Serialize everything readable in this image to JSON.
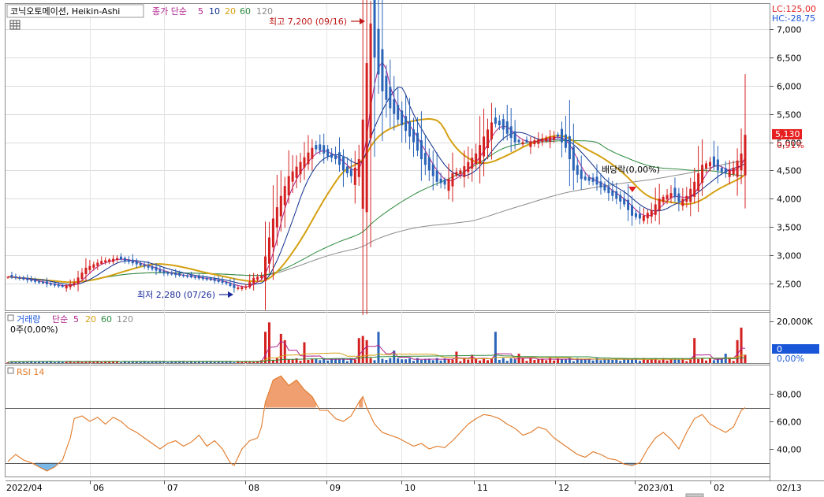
{
  "header": {
    "stock_name": "코닉오토메이션, Heikin-Ashi",
    "ma_legend_prefix": "종가 단순",
    "ma_periods": [
      "5",
      "10",
      "20",
      "60",
      "120"
    ],
    "ma_colors": [
      "#b0208c",
      "#0a2a8a",
      "#d4a010",
      "#2e8b3e",
      "#8c8c8c"
    ],
    "lc_label": "LC:125,00",
    "hc_label": "HC:-28,75",
    "current_price": "5,130",
    "current_change": "0,91%"
  },
  "annotations": {
    "high_label": "최고 7,200 (09/16)",
    "low_label": "최저 2,280 (07/26)",
    "dividend_label": "배당락(0,00%)"
  },
  "volume_panel": {
    "legend_name": "거래량",
    "legend_prefix": "단순",
    "legend_periods": [
      "5",
      "20",
      "60",
      "120"
    ],
    "info": "0주(0,00%)",
    "axis_top": "20,000K",
    "value_box": "0",
    "pct_label": "0,00%"
  },
  "rsi_panel": {
    "legend": "RSI 14",
    "ticks": [
      "80,00",
      "60,00",
      "40,00"
    ]
  },
  "colors": {
    "up": "#d42020",
    "down": "#2a64b8",
    "rsi_line": "#e07a2a",
    "rsi_fill_high": "#f0a070",
    "rsi_fill_low": "#7ab8e8",
    "price_box": "#e62020",
    "volume_box": "#1a56d8"
  },
  "chart_data": {
    "type": "candlestick",
    "x_labels": [
      "2022/04",
      "06",
      "07",
      "08",
      "09",
      "10",
      "11",
      "12",
      "2023/01",
      "02",
      "02/13"
    ],
    "y_ticks": [
      "7,000",
      "6,500",
      "6,000",
      "5,500",
      "5,000",
      "4,500",
      "4,000",
      "3,500",
      "3,000",
      "2,500"
    ],
    "ylim": [
      2000,
      7400
    ],
    "price_anchors": [
      [
        0,
        2620
      ],
      [
        5,
        2560
      ],
      [
        10,
        2490
      ],
      [
        14,
        2440
      ],
      [
        17,
        2520
      ],
      [
        20,
        2780
      ],
      [
        24,
        2900
      ],
      [
        28,
        2950
      ],
      [
        32,
        2860
      ],
      [
        36,
        2780
      ],
      [
        40,
        2680
      ],
      [
        44,
        2640
      ],
      [
        48,
        2600
      ],
      [
        52,
        2560
      ],
      [
        56,
        2500
      ],
      [
        58,
        2420
      ],
      [
        61,
        2450
      ],
      [
        63,
        2600
      ],
      [
        65,
        2640
      ],
      [
        66,
        2980
      ],
      [
        68,
        3650
      ],
      [
        70,
        4050
      ],
      [
        72,
        4400
      ],
      [
        75,
        4650
      ],
      [
        78,
        4900
      ],
      [
        80,
        4850
      ],
      [
        82,
        4750
      ],
      [
        84,
        4700
      ],
      [
        86,
        4500
      ],
      [
        88,
        4400
      ],
      [
        90,
        4700
      ],
      [
        91,
        5400
      ],
      [
        92,
        6400
      ],
      [
        93,
        7100
      ],
      [
        94,
        6500
      ],
      [
        96,
        5900
      ],
      [
        98,
        5600
      ],
      [
        100,
        5400
      ],
      [
        102,
        5200
      ],
      [
        104,
        5000
      ],
      [
        106,
        4700
      ],
      [
        108,
        4500
      ],
      [
        110,
        4300
      ],
      [
        112,
        4250
      ],
      [
        114,
        4450
      ],
      [
        116,
        4500
      ],
      [
        118,
        4650
      ],
      [
        120,
        4800
      ],
      [
        122,
        5100
      ],
      [
        124,
        5350
      ],
      [
        126,
        5300
      ],
      [
        128,
        5150
      ],
      [
        130,
        5000
      ],
      [
        133,
        5000
      ],
      [
        136,
        5050
      ],
      [
        139,
        5100
      ],
      [
        141,
        5100
      ],
      [
        143,
        4900
      ],
      [
        145,
        4500
      ],
      [
        147,
        4350
      ],
      [
        150,
        4300
      ],
      [
        153,
        4150
      ],
      [
        156,
        4000
      ],
      [
        158,
        3900
      ],
      [
        160,
        3700
      ],
      [
        162,
        3650
      ],
      [
        163,
        3700
      ],
      [
        165,
        3800
      ],
      [
        167,
        4000
      ],
      [
        170,
        4100
      ],
      [
        172,
        3950
      ],
      [
        174,
        4050
      ],
      [
        176,
        4300
      ],
      [
        178,
        4600
      ],
      [
        180,
        4650
      ],
      [
        182,
        4500
      ],
      [
        184,
        4450
      ],
      [
        186,
        4550
      ],
      [
        188,
        4800
      ],
      [
        189,
        5130
      ]
    ],
    "volume_ylim": [
      0,
      20000
    ],
    "volume_spikes": [
      [
        66,
        15000
      ],
      [
        67,
        19500
      ],
      [
        70,
        14000
      ],
      [
        71,
        11000
      ],
      [
        76,
        10000
      ],
      [
        90,
        12000
      ],
      [
        91,
        13000
      ],
      [
        92,
        11000
      ],
      [
        95,
        15000
      ],
      [
        99,
        6000
      ],
      [
        115,
        5500
      ],
      [
        119,
        4000
      ],
      [
        125,
        15000
      ],
      [
        131,
        4500
      ],
      [
        176,
        12000
      ],
      [
        184,
        4500
      ],
      [
        187,
        11000
      ],
      [
        188,
        17000
      ],
      [
        189,
        4000
      ]
    ],
    "rsi_ylim": [
      20,
      100
    ],
    "rsi_levels": [
      70,
      30
    ],
    "rsi_anchors": [
      [
        0,
        31
      ],
      [
        2,
        36
      ],
      [
        4,
        32
      ],
      [
        6,
        30
      ],
      [
        8,
        27
      ],
      [
        10,
        24
      ],
      [
        12,
        27
      ],
      [
        14,
        32
      ],
      [
        16,
        48
      ],
      [
        17,
        62
      ],
      [
        19,
        64
      ],
      [
        21,
        60
      ],
      [
        23,
        63
      ],
      [
        25,
        58
      ],
      [
        27,
        63
      ],
      [
        29,
        60
      ],
      [
        31,
        55
      ],
      [
        33,
        52
      ],
      [
        35,
        48
      ],
      [
        37,
        44
      ],
      [
        39,
        40
      ],
      [
        41,
        44
      ],
      [
        43,
        46
      ],
      [
        45,
        42
      ],
      [
        47,
        45
      ],
      [
        49,
        50
      ],
      [
        51,
        42
      ],
      [
        53,
        46
      ],
      [
        55,
        40
      ],
      [
        57,
        30
      ],
      [
        58,
        28
      ],
      [
        60,
        40
      ],
      [
        62,
        46
      ],
      [
        64,
        48
      ],
      [
        65,
        56
      ],
      [
        66,
        74
      ],
      [
        68,
        90
      ],
      [
        70,
        93
      ],
      [
        72,
        86
      ],
      [
        73,
        88
      ],
      [
        74,
        90
      ],
      [
        76,
        83
      ],
      [
        78,
        78
      ],
      [
        80,
        68
      ],
      [
        82,
        68
      ],
      [
        84,
        62
      ],
      [
        86,
        60
      ],
      [
        88,
        64
      ],
      [
        90,
        74
      ],
      [
        91,
        78
      ],
      [
        92,
        70
      ],
      [
        94,
        58
      ],
      [
        96,
        52
      ],
      [
        98,
        50
      ],
      [
        100,
        48
      ],
      [
        102,
        45
      ],
      [
        104,
        42
      ],
      [
        106,
        44
      ],
      [
        108,
        40
      ],
      [
        110,
        42
      ],
      [
        112,
        41
      ],
      [
        114,
        46
      ],
      [
        116,
        52
      ],
      [
        118,
        58
      ],
      [
        120,
        62
      ],
      [
        122,
        65
      ],
      [
        124,
        64
      ],
      [
        126,
        62
      ],
      [
        128,
        58
      ],
      [
        130,
        55
      ],
      [
        132,
        50
      ],
      [
        134,
        52
      ],
      [
        136,
        56
      ],
      [
        138,
        54
      ],
      [
        140,
        48
      ],
      [
        142,
        44
      ],
      [
        144,
        40
      ],
      [
        146,
        36
      ],
      [
        148,
        34
      ],
      [
        150,
        38
      ],
      [
        152,
        36
      ],
      [
        154,
        33
      ],
      [
        156,
        32
      ],
      [
        158,
        29
      ],
      [
        160,
        28
      ],
      [
        162,
        30
      ],
      [
        164,
        40
      ],
      [
        166,
        48
      ],
      [
        168,
        52
      ],
      [
        170,
        47
      ],
      [
        172,
        40
      ],
      [
        174,
        52
      ],
      [
        176,
        62
      ],
      [
        178,
        65
      ],
      [
        180,
        58
      ],
      [
        182,
        55
      ],
      [
        184,
        52
      ],
      [
        186,
        56
      ],
      [
        188,
        68
      ],
      [
        189,
        70
      ]
    ]
  }
}
